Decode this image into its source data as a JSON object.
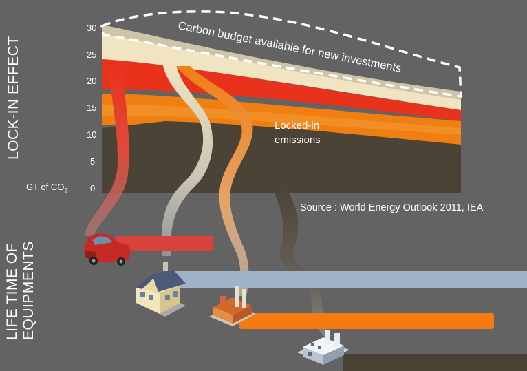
{
  "lock_in_label": "LOCK-IN EFFECT",
  "lifetime_label_1": "LIFE TIME OF",
  "lifetime_label_2": "EQUIPMENTS",
  "y_ticks": [
    "30",
    "25",
    "20",
    "15",
    "10",
    "5",
    "0"
  ],
  "unit": {
    "prefix": "GT of CO",
    "sub": "2"
  },
  "budget_label": "Carbon budget available for new investments",
  "locked_label_1": "Locked-in",
  "locked_label_2": "emissions",
  "source": "Source : World Energy Outlook 2011, IEA",
  "colors": {
    "background": "#636363",
    "base": "#4b4336",
    "orange": "#f07f12",
    "red": "#e8321c",
    "cream": "#f0e4c2",
    "tan": "#cfc4a8",
    "car_bar": "#d9413c",
    "house_bar": "#9fb3c9",
    "factory_bar": "#f57a12",
    "plant_bar": "#4a4232"
  },
  "equipment": [
    {
      "name": "car",
      "color": "car_bar"
    },
    {
      "name": "house",
      "color": "house_bar"
    },
    {
      "name": "factory",
      "color": "factory_bar"
    },
    {
      "name": "power-plant",
      "color": "plant_bar"
    }
  ]
}
